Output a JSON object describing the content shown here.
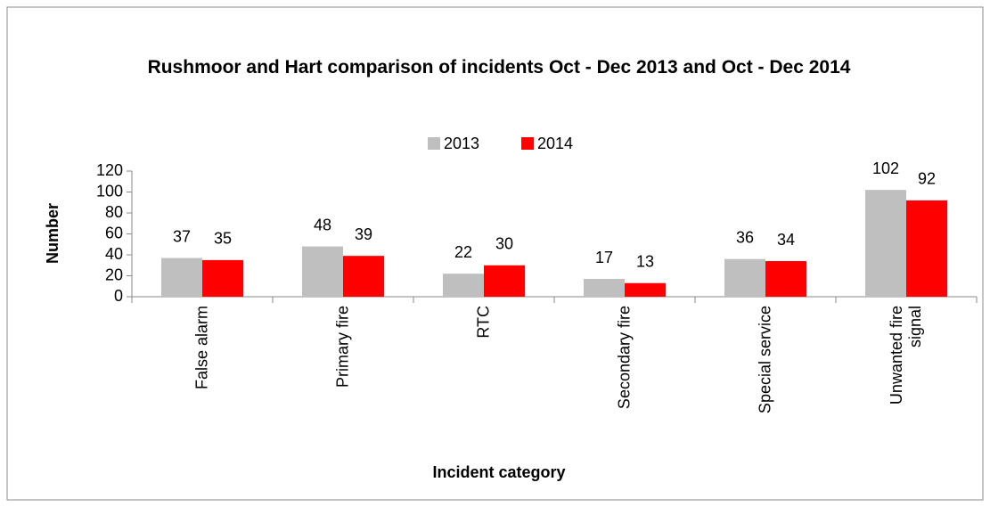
{
  "chart_data": {
    "type": "bar",
    "title": "Rushmoor and Hart comparison of incidents Oct - Dec 2013 and Oct - Dec 2014",
    "x_label": "Incident category",
    "y_label": "Number",
    "categories": [
      "False alarm",
      "Primary fire",
      "RTC",
      "Secondary fire",
      "Special service",
      "Unwanted fire signal"
    ],
    "series": [
      {
        "name": "2013",
        "color": "#bfbfbf",
        "values": [
          37,
          48,
          22,
          17,
          36,
          102
        ]
      },
      {
        "name": "2014",
        "color": "#ff0000",
        "values": [
          35,
          39,
          30,
          13,
          34,
          92
        ]
      }
    ],
    "ylim": [
      0,
      120
    ],
    "yticks": [
      0,
      20,
      40,
      60,
      80,
      100,
      120
    ],
    "legend": "top",
    "grid": false
  }
}
